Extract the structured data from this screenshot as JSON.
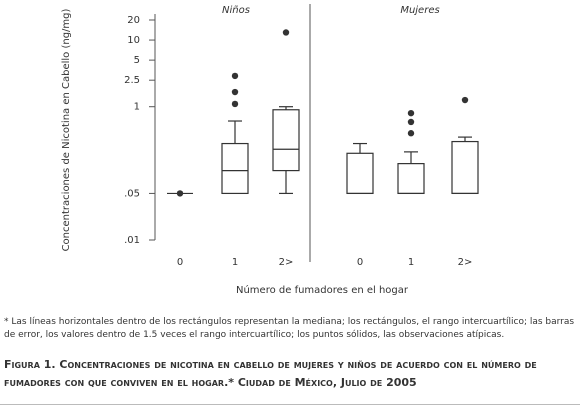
{
  "chart_data": {
    "type": "box",
    "y_label": "Concentraciones de Nicotina en Cabello (ng/mg)",
    "x_label": "Número de  fumadores en el hogar",
    "log_scale": true,
    "ylim": [
      0.01,
      20
    ],
    "yticks": [
      {
        "value": 0.01,
        "label": ".01"
      },
      {
        "value": 0.05,
        "label": ".05"
      },
      1,
      2.5,
      5,
      10,
      20
    ],
    "color": "#333333",
    "panels": [
      {
        "title": "Niños",
        "categories": [
          "0",
          "1",
          "2>"
        ],
        "boxes": [
          {
            "min": 0.05,
            "q1": 0.05,
            "median": 0.05,
            "q3": 0.05,
            "max": 0.05,
            "outliers": [
              0.05
            ]
          },
          {
            "min": 0.05,
            "q1": 0.05,
            "median": 0.11,
            "q3": 0.28,
            "max": 0.61,
            "outliers": [
              2.9,
              1.66,
              1.1
            ]
          },
          {
            "min": 0.05,
            "q1": 0.11,
            "median": 0.23,
            "q3": 0.9,
            "max": 1.0,
            "outliers": [
              13
            ]
          }
        ]
      },
      {
        "title": "Mujeres",
        "categories": [
          "0",
          "1",
          "2>"
        ],
        "boxes": [
          {
            "min": 0.05,
            "q1": 0.05,
            "median": 0.05,
            "q3": 0.2,
            "max": 0.28,
            "outliers": []
          },
          {
            "min": 0.05,
            "q1": 0.05,
            "median": 0.05,
            "q3": 0.14,
            "max": 0.21,
            "outliers": [
              0.8,
              0.59,
              0.4
            ]
          },
          {
            "min": 0.05,
            "q1": 0.05,
            "median": 0.05,
            "q3": 0.3,
            "max": 0.35,
            "outliers": [
              1.26
            ]
          }
        ]
      }
    ],
    "footnote": "* Las líneas horizontales dentro de los rectángulos representan la mediana; los rectángulos, el rango intercuartílico; las barras de error, los valores dentro de 1.5 veces el rango intercuartílico; los puntos sólidos, las observaciones atípicas.",
    "caption": "Figura 1. Concentraciones de nicotina en cabello de mujeres y niños de acuerdo con el número de fumadores con que conviven en el hogar.* Ciudad de México, Julio de 2005"
  }
}
